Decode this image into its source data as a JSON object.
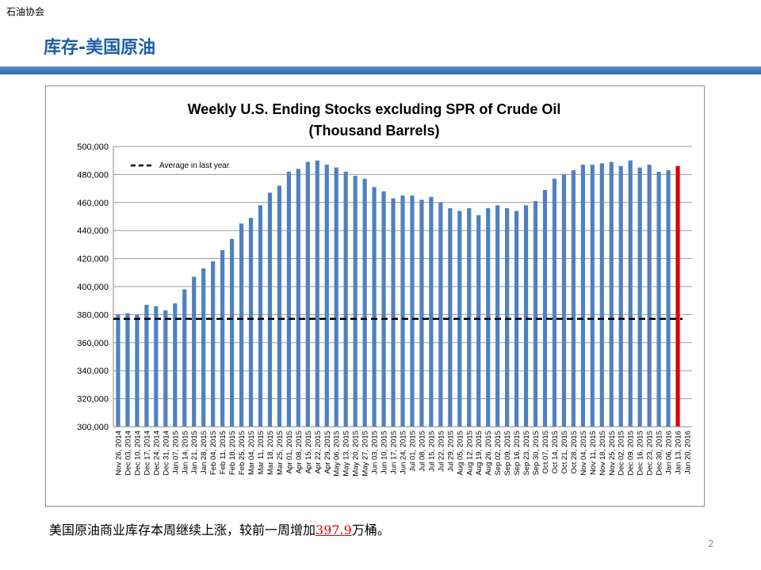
{
  "slide": {
    "header": "石油协会",
    "title": "库存-美国原油",
    "note": [
      "美国原油商业库存本周继续上涨，较前一周增加",
      "397.9",
      "万桶。"
    ],
    "page_number": "2"
  },
  "chart_data": {
    "type": "bar",
    "title": "Weekly U.S. Ending Stocks excluding SPR of Crude Oil",
    "subtitle": "(Thousand Barrels)",
    "categories": [
      "Nov 26, 2014",
      "Dec 03, 2014",
      "Dec 10, 2014",
      "Dec 17, 2014",
      "Dec 24, 2014",
      "Dec 31, 2014",
      "Jan 07, 2015",
      "Jan 14, 2015",
      "Jan 21, 2015",
      "Jan 28, 2015",
      "Feb 04, 2015",
      "Feb 11, 2015",
      "Feb 18, 2015",
      "Feb 25, 2015",
      "Mar 04, 2015",
      "Mar 11, 2015",
      "Mar 18, 2015",
      "Mar 25, 2015",
      "Apr 01, 2015",
      "Apr 08, 2015",
      "Apr 15, 2015",
      "Apr 22, 2015",
      "Apr 29, 2015",
      "May 06, 2015",
      "May 13, 2015",
      "May 20, 2015",
      "May 27, 2015",
      "Jun 03, 2015",
      "Jun 10, 2015",
      "Jun 17, 2015",
      "Jun 24, 2015",
      "Jul 01, 2015",
      "Jul 08, 2015",
      "Jul 15, 2015",
      "Jul 22, 2015",
      "Jul 29, 2015",
      "Aug 05, 2015",
      "Aug 12, 2015",
      "Aug 19, 2015",
      "Aug 26, 2015",
      "Sep 02, 2015",
      "Sep 09, 2015",
      "Sep 16, 2015",
      "Sep 23, 2015",
      "Sep 30, 2015",
      "Oct 07, 2015",
      "Oct 14, 2015",
      "Oct 21, 2015",
      "Oct 28, 2015",
      "Nov 04, 2015",
      "Nov 11, 2015",
      "Nov 18, 2015",
      "Nov 25, 2015",
      "Dec 02, 2015",
      "Dec 09, 2015",
      "Dec 16, 2015",
      "Dec 23, 2015",
      "Dec 30, 2015",
      "Jan 06, 2016",
      "Jan 13, 2016",
      "Jan 20, 2016"
    ],
    "values": [
      380000,
      381000,
      380000,
      387000,
      386000,
      383000,
      388000,
      398000,
      407000,
      413000,
      418000,
      426000,
      434000,
      445000,
      449000,
      458000,
      467000,
      472000,
      482000,
      484000,
      489000,
      490000,
      487000,
      485000,
      482000,
      479000,
      477000,
      471000,
      468000,
      463000,
      465000,
      465000,
      462000,
      464000,
      460000,
      456000,
      454000,
      456000,
      451000,
      456000,
      458000,
      456000,
      454000,
      458000,
      461000,
      469000,
      477000,
      480000,
      483000,
      487000,
      487000,
      488000,
      489000,
      486000,
      490000,
      485000,
      487000,
      482000,
      483000,
      486000,
      null
    ],
    "color": "#4f81bd",
    "last_bar_color": "#e00000",
    "average": {
      "name": "Average in last year",
      "value": 377000
    },
    "ylim": [
      300000,
      500000
    ],
    "yticks": [
      {
        "value": 300000,
        "label": "300,000"
      },
      {
        "value": 320000,
        "label": "320,000"
      },
      {
        "value": 340000,
        "label": "340,000"
      },
      {
        "value": 360000,
        "label": "360,000"
      },
      {
        "value": 380000,
        "label": "380,000"
      },
      {
        "value": 400000,
        "label": "400,000"
      },
      {
        "value": 420000,
        "label": "420,000"
      },
      {
        "value": 440000,
        "label": "440,000"
      },
      {
        "value": 460000,
        "label": "460,000"
      },
      {
        "value": 480000,
        "label": "480,000"
      },
      {
        "value": 500000,
        "label": "500,000"
      }
    ],
    "grid": true
  }
}
